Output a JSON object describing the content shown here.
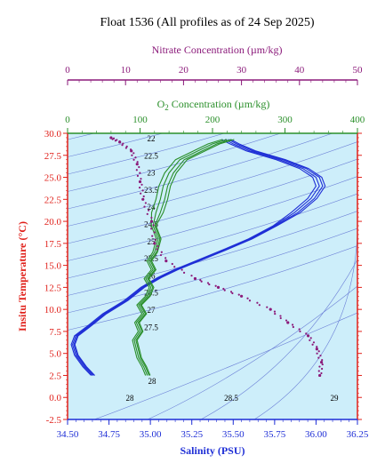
{
  "chart_data": {
    "type": "line",
    "title": "Float 1536  (All profiles as of 24 Sep 2025)",
    "xlabel": "Salinity (PSU)",
    "ylabel": "Insitu Temperature (°C)",
    "xlim": [
      34.5,
      36.25
    ],
    "ylim": [
      -2.5,
      30.0
    ],
    "x_ticks": [
      "34.50",
      "34.75",
      "35.00",
      "35.25",
      "35.50",
      "35.75",
      "36.00",
      "36.25"
    ],
    "y_ticks": [
      "-2.5",
      "0.0",
      "2.5",
      "5.0",
      "7.5",
      "10.0",
      "12.5",
      "15.0",
      "17.5",
      "20.0",
      "22.5",
      "25.0",
      "27.5",
      "30.0"
    ],
    "o2_axis": {
      "label_prefix": "O",
      "label_sub": "2",
      "label_suffix": " Concentration (µm/kg)",
      "range": [
        0,
        400
      ],
      "ticks": [
        "0",
        "100",
        "200",
        "300",
        "400"
      ]
    },
    "nitrate_axis": {
      "label": "Nitrate Concentration (µm/kg)",
      "range": [
        0,
        50
      ],
      "ticks": [
        "0",
        "10",
        "20",
        "30",
        "40",
        "50"
      ]
    },
    "density_contours": {
      "labels": [
        "22",
        "22.5",
        "23",
        "23.5",
        "24",
        "24.5",
        "25",
        "25.5",
        "26",
        "26.5",
        "27",
        "27.5",
        "28",
        "28",
        "28.5",
        "29"
      ]
    },
    "series": [
      {
        "color": "#1f2fd6",
        "axis": "salinity",
        "points": [
          [
            34.65,
            2.5
          ],
          [
            34.6,
            3.5
          ],
          [
            34.55,
            4.8
          ],
          [
            34.53,
            6.0
          ],
          [
            34.55,
            7.0
          ],
          [
            34.62,
            8.0
          ],
          [
            34.72,
            9.5
          ],
          [
            34.85,
            11.0
          ],
          [
            34.95,
            12.5
          ],
          [
            35.05,
            13.6
          ],
          [
            35.15,
            14.5
          ],
          [
            35.28,
            15.5
          ],
          [
            35.45,
            16.8
          ],
          [
            35.6,
            18.0
          ],
          [
            35.75,
            19.5
          ],
          [
            35.87,
            21.0
          ],
          [
            35.97,
            22.6
          ],
          [
            36.02,
            24.0
          ],
          [
            36.0,
            25.0
          ],
          [
            35.92,
            26.0
          ],
          [
            35.78,
            27.0
          ],
          [
            35.6,
            28.0
          ],
          [
            35.5,
            28.8
          ],
          [
            35.45,
            29.3
          ]
        ]
      },
      {
        "color": "#2a8f2a",
        "axis": "o2",
        "points": [
          [
            110,
            2.5
          ],
          [
            105,
            3.5
          ],
          [
            98,
            4.5
          ],
          [
            95,
            5.5
          ],
          [
            92,
            6.5
          ],
          [
            100,
            7.5
          ],
          [
            95,
            8.5
          ],
          [
            105,
            9.5
          ],
          [
            98,
            10.5
          ],
          [
            110,
            11.5
          ],
          [
            115,
            12.5
          ],
          [
            108,
            13.5
          ],
          [
            118,
            14.5
          ],
          [
            112,
            15.5
          ],
          [
            120,
            16.5
          ],
          [
            125,
            18.0
          ],
          [
            118,
            19.5
          ],
          [
            122,
            21.0
          ],
          [
            128,
            22.5
          ],
          [
            132,
            24.0
          ],
          [
            140,
            25.5
          ],
          [
            155,
            27.0
          ],
          [
            180,
            28.0
          ],
          [
            200,
            28.8
          ],
          [
            220,
            29.3
          ]
        ]
      },
      {
        "color": "#8b1a7a",
        "axis": "nitrate",
        "points": [
          [
            43.5,
            2.5
          ],
          [
            43.8,
            4.0
          ],
          [
            43.0,
            5.5
          ],
          [
            41.5,
            7.0
          ],
          [
            38.0,
            8.5
          ],
          [
            35.0,
            10.0
          ],
          [
            30.0,
            11.5
          ],
          [
            26.0,
            12.5
          ],
          [
            22.0,
            13.5
          ],
          [
            17.0,
            15.5
          ],
          [
            15.0,
            17.5
          ],
          [
            14.5,
            20.0
          ],
          [
            13.0,
            22.5
          ],
          [
            12.5,
            24.5
          ],
          [
            12.0,
            26.5
          ],
          [
            11.0,
            28.0
          ],
          [
            9.0,
            29.0
          ],
          [
            7.5,
            29.5
          ]
        ]
      }
    ]
  }
}
